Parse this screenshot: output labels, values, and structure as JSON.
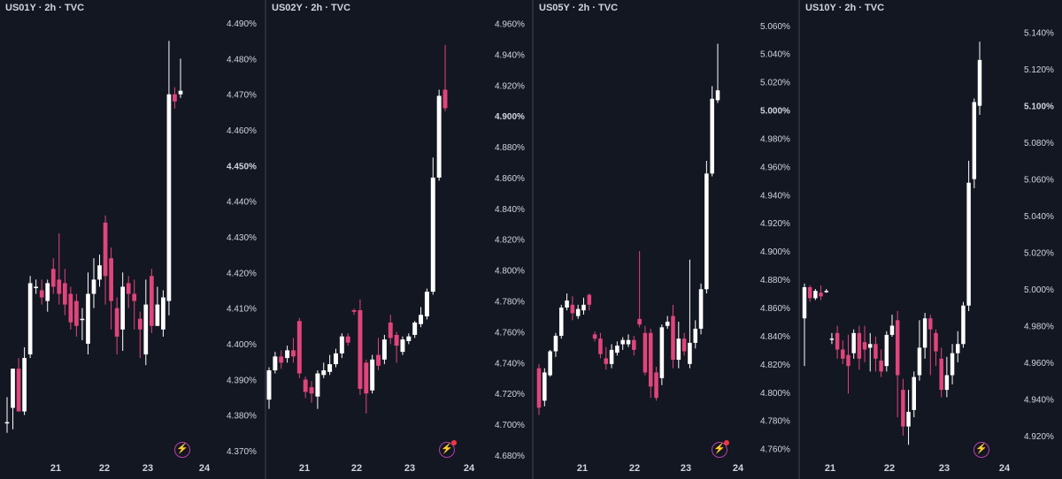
{
  "colors": {
    "background": "#131722",
    "separator": "#2a2e39",
    "up": "#ffffff",
    "down": "#e0457b",
    "text": "#d1d4dc",
    "alert": "#d2459c"
  },
  "chart_data": [
    {
      "type": "candlestick",
      "title": "US01Y · 2h · TVC",
      "x_ticks": [
        "21",
        "22",
        "23",
        "24"
      ],
      "y_ticks": [
        "4.490%",
        "4.480%",
        "4.470%",
        "4.460%",
        "4.450%",
        "4.440%",
        "4.430%",
        "4.420%",
        "4.410%",
        "4.400%",
        "4.390%",
        "4.380%",
        "4.370%"
      ],
      "bold_tick": "4.450%",
      "ylim": [
        4.367,
        4.4925
      ],
      "has_alert_dot": false,
      "candles": [
        [
          4.378,
          4.378,
          4.385,
          4.375
        ],
        [
          4.382,
          4.393,
          4.393,
          4.376
        ],
        [
          4.393,
          4.381,
          4.396,
          4.381
        ],
        [
          4.381,
          4.396,
          4.399,
          4.38
        ],
        [
          4.397,
          4.417,
          4.419,
          4.396
        ],
        [
          4.416,
          4.416,
          4.418,
          4.414
        ],
        [
          4.415,
          4.413,
          4.418,
          4.411
        ],
        [
          4.412,
          4.417,
          4.418,
          4.409
        ],
        [
          4.421,
          4.416,
          4.424,
          4.414
        ],
        [
          4.418,
          4.414,
          4.431,
          4.411
        ],
        [
          4.417,
          4.411,
          4.421,
          4.408
        ],
        [
          4.414,
          4.406,
          4.416,
          4.404
        ],
        [
          4.412,
          4.405,
          4.414,
          4.402
        ],
        [
          4.407,
          4.407,
          4.41,
          4.401
        ],
        [
          4.4,
          4.414,
          4.42,
          4.397
        ],
        [
          4.414,
          4.418,
          4.424,
          4.41
        ],
        [
          4.418,
          4.422,
          4.425,
          4.416
        ],
        [
          4.434,
          4.419,
          4.436,
          4.411
        ],
        [
          4.424,
          4.412,
          4.427,
          4.404
        ],
        [
          4.41,
          4.402,
          4.413,
          4.397
        ],
        [
          4.404,
          4.416,
          4.42,
          4.398
        ],
        [
          4.417,
          4.414,
          4.419,
          4.41
        ],
        [
          4.414,
          4.412,
          4.418,
          4.404
        ],
        [
          4.407,
          4.404,
          4.409,
          4.396
        ],
        [
          4.397,
          4.411,
          4.418,
          4.394
        ],
        [
          4.419,
          4.405,
          4.421,
          4.403
        ],
        [
          4.405,
          4.411,
          4.416,
          4.405
        ],
        [
          4.404,
          4.413,
          4.415,
          4.402
        ],
        [
          4.412,
          4.47,
          4.485,
          4.408
        ],
        [
          4.47,
          4.468,
          4.472,
          4.466
        ],
        [
          4.47,
          4.471,
          4.48,
          4.469
        ]
      ]
    },
    {
      "type": "candlestick",
      "title": "US02Y · 2h · TVC",
      "x_ticks": [
        "21",
        "22",
        "23",
        "24"
      ],
      "y_ticks": [
        "4.960%",
        "4.940%",
        "4.920%",
        "4.900%",
        "4.880%",
        "4.860%",
        "4.840%",
        "4.820%",
        "4.800%",
        "4.780%",
        "4.760%",
        "4.740%",
        "4.720%",
        "4.700%",
        "4.680%"
      ],
      "bold_tick": "4.900%",
      "ylim": [
        4.676,
        4.966
      ],
      "has_alert_dot": true,
      "candles": [
        [
          4.716,
          4.735,
          4.737,
          4.71
        ],
        [
          4.735,
          4.744,
          4.747,
          4.733
        ],
        [
          4.744,
          4.74,
          4.748,
          4.736
        ],
        [
          4.743,
          4.748,
          4.751,
          4.74
        ],
        [
          4.748,
          4.744,
          4.756,
          4.74
        ],
        [
          4.767,
          4.733,
          4.769,
          4.73
        ],
        [
          4.729,
          4.721,
          4.731,
          4.717
        ],
        [
          4.724,
          4.72,
          4.728,
          4.714
        ],
        [
          4.718,
          4.733,
          4.735,
          4.71
        ],
        [
          4.732,
          4.735,
          4.74,
          4.73
        ],
        [
          4.734,
          4.739,
          4.745,
          4.732
        ],
        [
          4.739,
          4.746,
          4.749,
          4.737
        ],
        [
          4.746,
          4.757,
          4.759,
          4.743
        ],
        [
          4.757,
          4.753,
          4.759,
          4.751
        ],
        [
          4.774,
          4.773,
          4.775,
          4.771
        ],
        [
          4.774,
          4.723,
          4.781,
          4.719
        ],
        [
          4.74,
          4.72,
          4.742,
          4.707
        ],
        [
          4.722,
          4.742,
          4.745,
          4.72
        ],
        [
          4.745,
          4.738,
          4.756,
          4.735
        ],
        [
          4.742,
          4.755,
          4.758,
          4.739
        ],
        [
          4.766,
          4.756,
          4.771,
          4.752
        ],
        [
          4.758,
          4.751,
          4.76,
          4.74
        ],
        [
          4.747,
          4.755,
          4.757,
          4.745
        ],
        [
          4.754,
          4.757,
          4.759,
          4.752
        ],
        [
          4.758,
          4.766,
          4.767,
          4.756
        ],
        [
          4.765,
          4.771,
          4.776,
          4.763
        ],
        [
          4.77,
          4.786,
          4.788,
          4.768
        ],
        [
          4.786,
          4.86,
          4.873,
          4.784
        ],
        [
          4.86,
          4.913,
          4.917,
          4.858
        ],
        [
          4.917,
          4.905,
          4.946,
          4.903
        ]
      ]
    },
    {
      "type": "candlestick",
      "title": "US05Y · 2h · TVC",
      "x_ticks": [
        "21",
        "22",
        "23",
        "24"
      ],
      "y_ticks": [
        "5.060%",
        "5.040%",
        "5.020%",
        "5.000%",
        "4.980%",
        "4.960%",
        "4.940%",
        "4.920%",
        "4.900%",
        "4.880%",
        "4.860%",
        "4.840%",
        "4.820%",
        "4.800%",
        "4.780%",
        "4.760%"
      ],
      "bold_tick": "5.000%",
      "ylim": [
        4.751,
        5.068
      ],
      "has_alert_dot": true,
      "candles": [
        [
          4.817,
          4.789,
          4.82,
          4.784
        ],
        [
          4.794,
          4.814,
          4.817,
          4.79
        ],
        [
          4.812,
          4.829,
          4.83,
          4.811
        ],
        [
          4.829,
          4.84,
          4.842,
          4.825
        ],
        [
          4.84,
          4.86,
          4.862,
          4.838
        ],
        [
          4.86,
          4.865,
          4.87,
          4.858
        ],
        [
          4.862,
          4.856,
          4.868,
          4.851
        ],
        [
          4.854,
          4.859,
          4.862,
          4.852
        ],
        [
          4.858,
          4.862,
          4.867,
          4.855
        ],
        [
          4.869,
          4.862,
          4.87,
          4.858
        ],
        [
          4.841,
          4.838,
          4.843,
          4.836
        ],
        [
          4.838,
          4.827,
          4.842,
          4.824
        ],
        [
          4.824,
          4.82,
          4.832,
          4.816
        ],
        [
          4.82,
          4.83,
          4.834,
          4.817
        ],
        [
          4.828,
          4.833,
          4.836,
          4.826
        ],
        [
          4.834,
          4.837,
          4.839,
          4.83
        ],
        [
          4.834,
          4.837,
          4.841,
          4.832
        ],
        [
          4.837,
          4.83,
          4.84,
          4.826
        ],
        [
          4.852,
          4.848,
          4.9,
          4.846
        ],
        [
          4.842,
          4.814,
          4.847,
          4.812
        ],
        [
          4.842,
          4.804,
          4.845,
          4.796
        ],
        [
          4.814,
          4.796,
          4.818,
          4.794
        ],
        [
          4.81,
          4.846,
          4.848,
          4.805
        ],
        [
          4.847,
          4.85,
          4.854,
          4.845
        ],
        [
          4.854,
          4.823,
          4.862,
          4.817
        ],
        [
          4.823,
          4.838,
          4.85,
          4.817
        ],
        [
          4.838,
          4.829,
          4.842,
          4.826
        ],
        [
          4.82,
          4.835,
          4.894,
          4.817
        ],
        [
          4.835,
          4.845,
          4.851,
          4.831
        ],
        [
          4.845,
          4.873,
          4.877,
          4.841
        ],
        [
          4.873,
          4.955,
          4.964,
          4.87
        ],
        [
          4.955,
          5.008,
          5.017,
          4.953
        ],
        [
          5.007,
          5.014,
          5.047,
          5.005
        ]
      ]
    },
    {
      "type": "candlestick",
      "title": "US10Y · 2h · TVC",
      "x_ticks": [
        "21",
        "22",
        "23",
        "24"
      ],
      "y_ticks": [
        "5.140%",
        "5.120%",
        "5.100%",
        "5.080%",
        "5.060%",
        "5.040%",
        "5.020%",
        "5.000%",
        "4.980%",
        "4.960%",
        "4.940%",
        "4.920%"
      ],
      "bold_tick": "5.100%",
      "ylim": [
        4.906,
        5.15
      ],
      "has_alert_dot": false,
      "candles": [
        [
          4.984,
          5.001,
          5.003,
          4.958
        ],
        [
          5.001,
          4.995,
          5.002,
          4.993
        ],
        [
          4.995,
          4.999,
          5.0,
          4.994
        ],
        [
          4.998,
          4.996,
          5.002,
          4.994
        ],
        [
          4.999,
          4.999,
          5.0,
          4.998
        ],
        [
          4.973,
          4.973,
          4.976,
          4.97
        ],
        [
          4.976,
          4.967,
          4.98,
          4.962
        ],
        [
          4.967,
          4.962,
          4.972,
          4.959
        ],
        [
          4.964,
          4.958,
          4.975,
          4.943
        ],
        [
          4.965,
          4.976,
          4.978,
          4.962
        ],
        [
          4.976,
          4.962,
          4.98,
          4.956
        ],
        [
          4.971,
          4.967,
          4.98,
          4.96
        ],
        [
          4.968,
          4.97,
          4.976,
          4.955
        ],
        [
          4.97,
          4.962,
          4.974,
          4.955
        ],
        [
          4.961,
          4.955,
          4.967,
          4.952
        ],
        [
          4.958,
          4.975,
          4.977,
          4.955
        ],
        [
          4.975,
          4.98,
          4.986,
          4.974
        ],
        [
          4.983,
          4.953,
          4.988,
          4.93
        ],
        [
          4.945,
          4.925,
          4.951,
          4.92
        ],
        [
          4.925,
          4.933,
          4.945,
          4.915
        ],
        [
          4.934,
          4.952,
          4.955,
          4.93
        ],
        [
          4.953,
          4.968,
          4.983,
          4.95
        ],
        [
          4.968,
          4.984,
          4.987,
          4.962
        ],
        [
          4.984,
          4.978,
          4.986,
          4.953
        ],
        [
          4.976,
          4.966,
          4.978,
          4.958
        ],
        [
          4.962,
          4.945,
          4.968,
          4.941
        ],
        [
          4.945,
          4.953,
          4.963,
          4.941
        ],
        [
          4.953,
          4.965,
          4.97,
          4.948
        ],
        [
          4.965,
          4.97,
          4.977,
          4.96
        ],
        [
          4.97,
          4.991,
          4.993,
          4.968
        ],
        [
          4.991,
          5.058,
          5.07,
          4.988
        ],
        [
          5.06,
          5.102,
          5.104,
          5.055
        ],
        [
          5.1,
          5.125,
          5.135,
          5.095
        ]
      ]
    }
  ]
}
